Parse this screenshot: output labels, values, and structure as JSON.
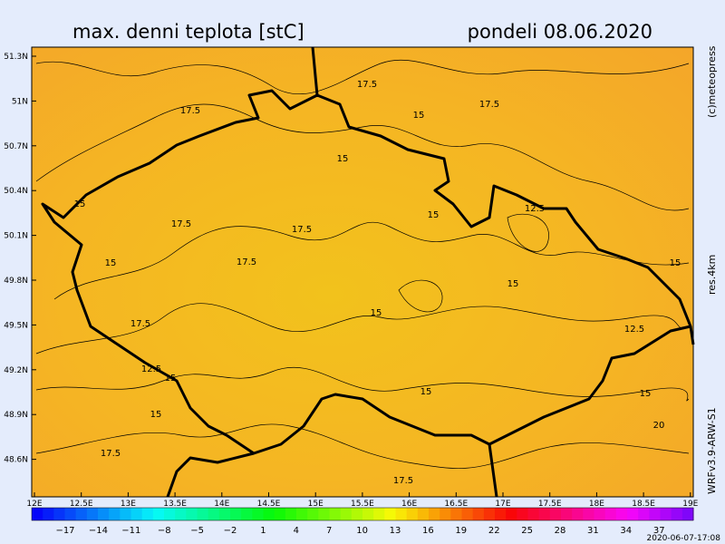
{
  "header": {
    "title": "max. denni teplota [stC]",
    "date": "pondeli 08.06.2020"
  },
  "side_labels": {
    "copyright": "(c)meteopress",
    "resolution": "res.4km",
    "model": "WRFv3.9-ARW-S1"
  },
  "axes": {
    "latitude": [
      "51.3N",
      "51N",
      "50.7N",
      "50.4N",
      "50.1N",
      "49.8N",
      "49.5N",
      "49.2N",
      "48.9N",
      "48.6N"
    ],
    "longitude": [
      "12E",
      "12.5E",
      "13E",
      "13.5E",
      "14E",
      "14.5E",
      "15E",
      "15.5E",
      "16E",
      "16.5E",
      "17E",
      "17.5E",
      "18E",
      "18.5E",
      "19E"
    ]
  },
  "contour_labels": [
    "17.5",
    "17.5",
    "15",
    "17.5",
    "15",
    "15",
    "17.5",
    "17.5",
    "15",
    "12.5",
    "15",
    "17.5",
    "15",
    "15",
    "15",
    "17.5",
    "12.5",
    "12.5",
    "15",
    "15",
    "15",
    "15",
    "20",
    "17.5",
    "17.5"
  ],
  "colorbar": {
    "labels": [
      "−17",
      "−14",
      "−11",
      "−8",
      "−5",
      "−2",
      "1",
      "4",
      "7",
      "10",
      "13",
      "16",
      "19",
      "22",
      "25",
      "28",
      "31",
      "34",
      "37"
    ]
  },
  "footer": {
    "timestamp": "2020-06-07-17:08"
  }
}
